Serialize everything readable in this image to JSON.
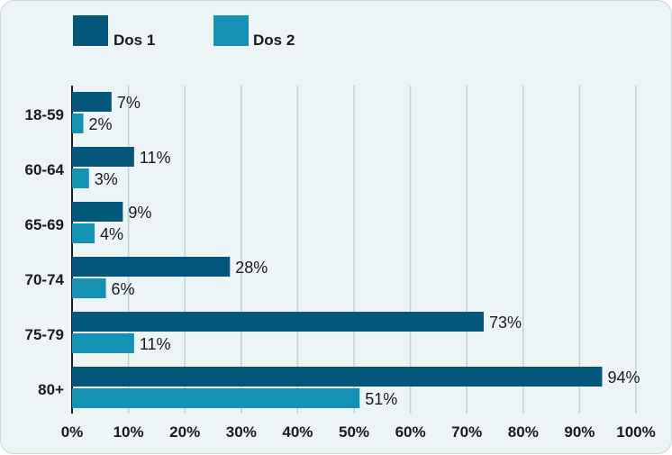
{
  "chart_data": {
    "type": "bar",
    "orientation": "horizontal",
    "categories": [
      "18-59",
      "60-64",
      "65-69",
      "70-74",
      "75-79",
      "80+"
    ],
    "series": [
      {
        "name": "Dos 1",
        "color": "#04567a",
        "values": [
          7,
          11,
          9,
          28,
          73,
          94
        ]
      },
      {
        "name": "Dos 2",
        "color": "#1591b4",
        "values": [
          2,
          3,
          4,
          6,
          11,
          51
        ]
      }
    ],
    "xlim": [
      0,
      100
    ],
    "xticks": [
      "0%",
      "10%",
      "20%",
      "30%",
      "40%",
      "50%",
      "60%",
      "70%",
      "80%",
      "90%",
      "100%"
    ],
    "value_suffix": "%",
    "grid": "vertical",
    "legend_position": "top-left"
  }
}
